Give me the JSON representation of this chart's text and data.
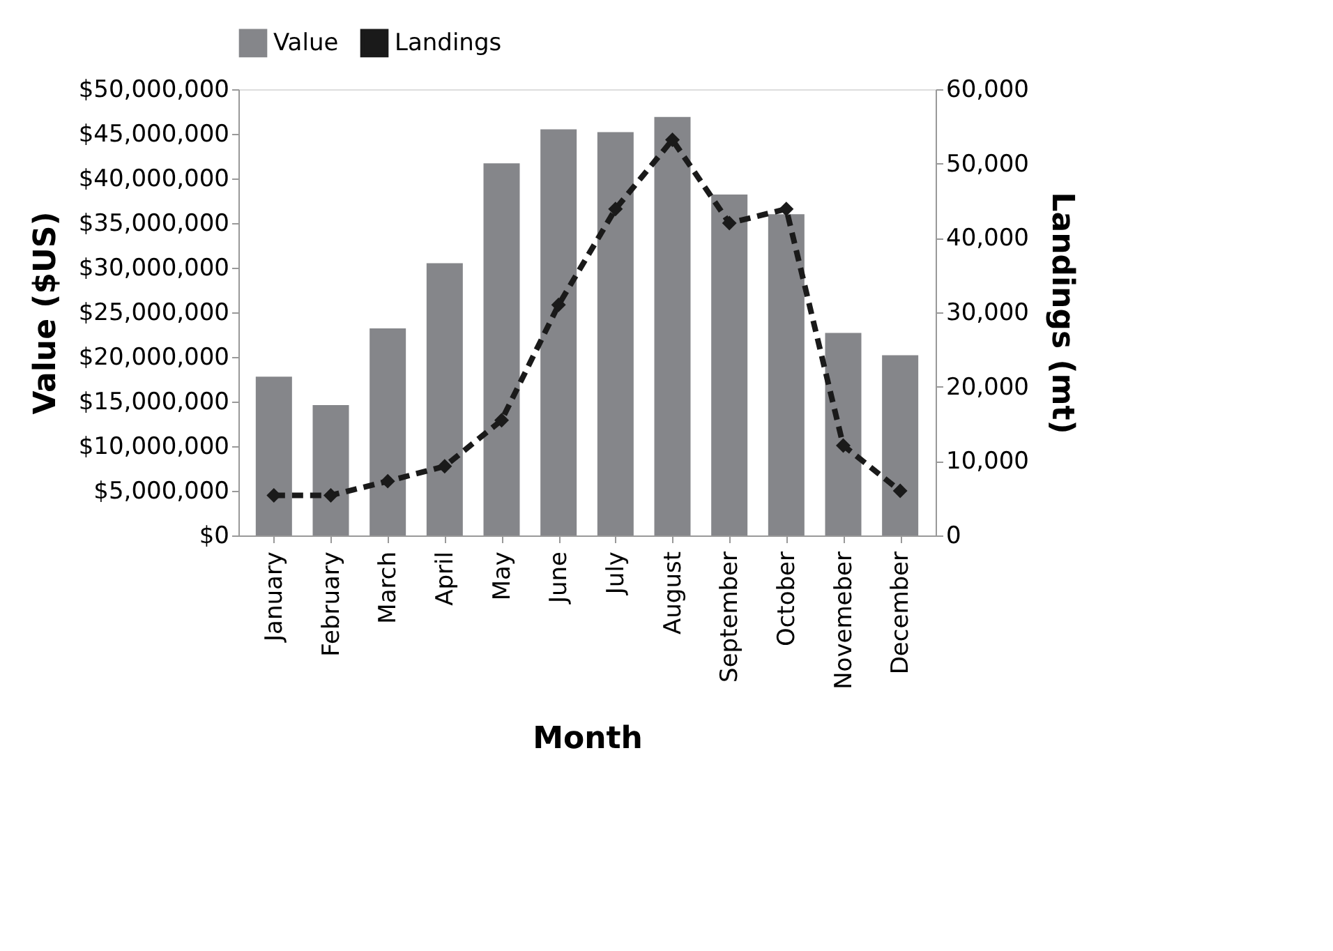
{
  "chart_data": {
    "type": "bar",
    "xlabel": "Month",
    "ylabel": "Value ($US)",
    "y2label": "Landings (mt)",
    "categories": [
      "January",
      "February",
      "March",
      "April",
      "May",
      "June",
      "July",
      "August",
      "September",
      "October",
      "Novemeber",
      "December"
    ],
    "series": [
      {
        "name": "Value",
        "color": "#85868a",
        "values": [
          17800000,
          14600000,
          23200000,
          30500000,
          41700000,
          45500000,
          45200000,
          46900000,
          38200000,
          36000000,
          22700000,
          20200000
        ]
      },
      {
        "name": "Landings",
        "type": "line",
        "axis": "y2",
        "color": "#1a1a1a",
        "line_style": "dashed",
        "marker": "diamond",
        "values": [
          5400,
          5400,
          7300,
          9300,
          15500,
          31000,
          43900,
          53200,
          42000,
          43900,
          12100,
          6000
        ]
      }
    ],
    "ylim": [
      0,
      50000000
    ],
    "yticks": [
      {
        "value": 0,
        "label": "$0"
      },
      {
        "value": 5000000,
        "label": "$5,000,000"
      },
      {
        "value": 10000000,
        "label": "$10,000,000"
      },
      {
        "value": 15000000,
        "label": "$15,000,000"
      },
      {
        "value": 20000000,
        "label": "$20,000,000"
      },
      {
        "value": 25000000,
        "label": "$25,000,000"
      },
      {
        "value": 30000000,
        "label": "$30,000,000"
      },
      {
        "value": 35000000,
        "label": "$35,000,000"
      },
      {
        "value": 40000000,
        "label": "$40,000,000"
      },
      {
        "value": 45000000,
        "label": "$45,000,000"
      },
      {
        "value": 50000000,
        "label": "$50,000,000"
      }
    ],
    "y2lim": [
      0,
      60000
    ],
    "y2ticks": [
      0,
      {
        "value": 10000,
        "label": "10,000"
      },
      {
        "value": 20000,
        "label": "20,000"
      },
      {
        "value": 30000,
        "label": "30,000"
      },
      {
        "value": 40000,
        "label": "40,000"
      },
      {
        "value": 50000,
        "label": "50,000"
      },
      {
        "value": 60000,
        "label": "60,000"
      }
    ],
    "legend": "top",
    "grid": false
  }
}
